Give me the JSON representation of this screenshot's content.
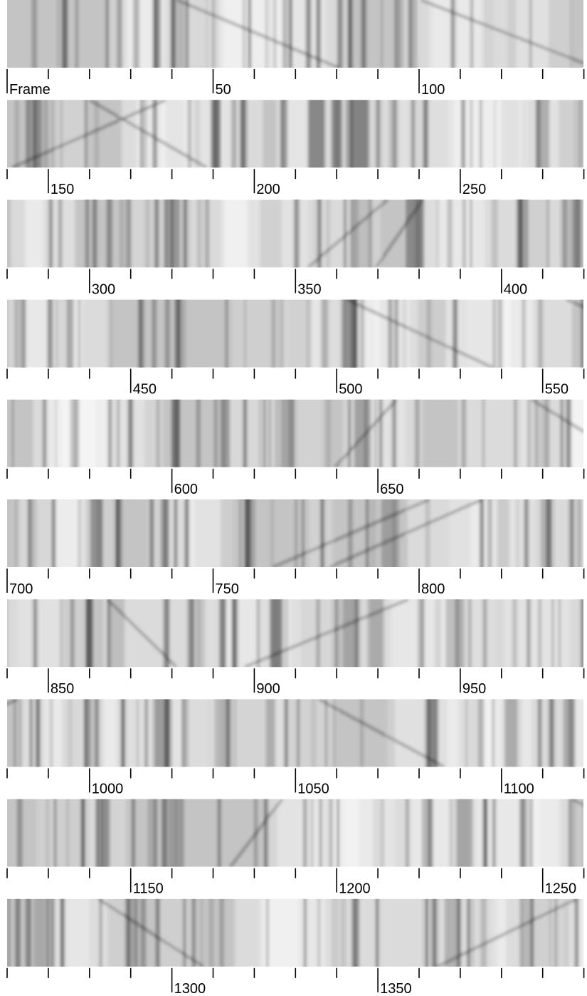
{
  "figure": {
    "strips": [
      {
        "labels": [
          "Frame",
          "50",
          "100"
        ]
      },
      {
        "labels": [
          "150",
          "200",
          "250"
        ]
      },
      {
        "labels": [
          "300",
          "350",
          "400"
        ]
      },
      {
        "labels": [
          "450",
          "500",
          "550"
        ]
      },
      {
        "labels": [
          "600",
          "650"
        ]
      },
      {
        "labels": [
          "700",
          "750",
          "800"
        ]
      },
      {
        "labels": [
          "850",
          "900",
          "950"
        ]
      },
      {
        "labels": [
          "1000",
          "1050",
          "1100"
        ]
      },
      {
        "labels": [
          "1150",
          "1200",
          "1250"
        ]
      },
      {
        "labels": [
          "1300",
          "1350"
        ]
      }
    ]
  }
}
